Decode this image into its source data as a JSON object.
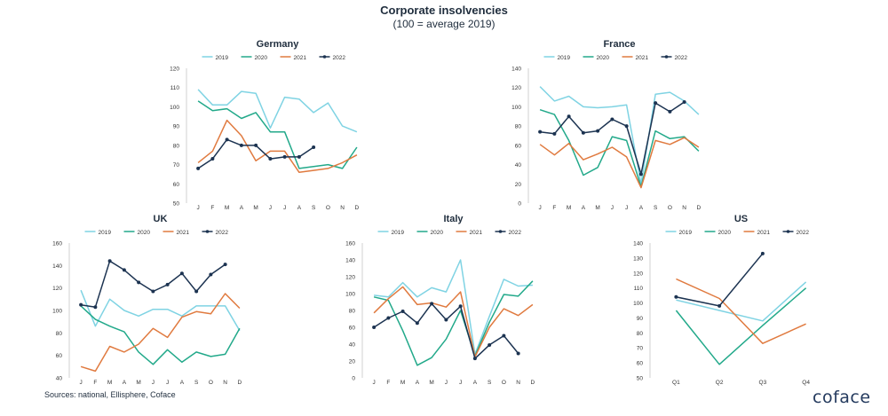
{
  "header": {
    "title": "Corporate insolvencies",
    "subtitle": "(100 = average 2019)"
  },
  "footer": {
    "source": "Sources: national, Ellisphere, Coface",
    "logo": "coface"
  },
  "colors": {
    "2019": "#7fd3e3",
    "2020": "#22a98a",
    "2021": "#e07a3f",
    "2022": "#1c3351",
    "axis_text": "#333333"
  },
  "chart_data": [
    {
      "type": "line",
      "title": "Germany",
      "categories": [
        "J",
        "F",
        "M",
        "A",
        "M",
        "J",
        "J",
        "A",
        "S",
        "O",
        "N",
        "D"
      ],
      "ylim": [
        50,
        120
      ],
      "yticks": [
        50,
        60,
        70,
        80,
        90,
        100,
        110,
        120
      ],
      "legend": "top-center",
      "series": [
        {
          "name": "2019",
          "values": [
            109,
            101,
            101,
            108,
            107,
            89,
            105,
            104,
            97,
            102,
            90,
            87
          ]
        },
        {
          "name": "2020",
          "values": [
            103,
            98,
            99,
            94,
            97,
            87,
            87,
            68,
            69,
            70,
            68,
            79
          ]
        },
        {
          "name": "2021",
          "values": [
            71,
            77,
            93,
            85,
            72,
            77,
            77,
            66,
            67,
            68,
            71,
            75
          ]
        },
        {
          "name": "2022",
          "values": [
            68,
            73,
            83,
            80,
            80,
            73,
            74,
            74,
            79,
            null,
            null,
            null
          ]
        }
      ]
    },
    {
      "type": "line",
      "title": "France",
      "categories": [
        "J",
        "F",
        "M",
        "A",
        "M",
        "J",
        "J",
        "A",
        "S",
        "O",
        "N",
        "D"
      ],
      "ylim": [
        0,
        140
      ],
      "yticks": [
        0,
        20,
        40,
        60,
        80,
        100,
        120,
        140
      ],
      "legend": "top-center",
      "series": [
        {
          "name": "2019",
          "values": [
            121,
            106,
            111,
            100,
            99,
            100,
            102,
            20,
            113,
            115,
            106,
            92
          ]
        },
        {
          "name": "2020",
          "values": [
            97,
            92,
            65,
            29,
            37,
            69,
            65,
            17,
            75,
            67,
            69,
            54
          ]
        },
        {
          "name": "2021",
          "values": [
            61,
            50,
            62,
            45,
            51,
            58,
            48,
            16,
            65,
            61,
            68,
            58
          ]
        },
        {
          "name": "2022",
          "values": [
            74,
            72,
            90,
            73,
            75,
            87,
            80,
            30,
            104,
            95,
            105,
            null
          ]
        }
      ]
    },
    {
      "type": "line",
      "title": "UK",
      "categories": [
        "J",
        "F",
        "M",
        "A",
        "M",
        "J",
        "J",
        "A",
        "S",
        "O",
        "N",
        "D"
      ],
      "ylim": [
        40,
        160
      ],
      "yticks": [
        40,
        60,
        80,
        100,
        120,
        140,
        160
      ],
      "legend": "top-center",
      "series": [
        {
          "name": "2019",
          "values": [
            118,
            86,
            110,
            100,
            95,
            101,
            101,
            95,
            104,
            104,
            104,
            82
          ]
        },
        {
          "name": "2020",
          "values": [
            104,
            92,
            86,
            81,
            63,
            52,
            65,
            54,
            63,
            59,
            61,
            84
          ]
        },
        {
          "name": "2021",
          "values": [
            50,
            46,
            68,
            63,
            70,
            84,
            76,
            94,
            99,
            97,
            115,
            102
          ]
        },
        {
          "name": "2022",
          "values": [
            105,
            103,
            144,
            136,
            125,
            117,
            123,
            133,
            117,
            132,
            141,
            null
          ]
        }
      ]
    },
    {
      "type": "line",
      "title": "Italy",
      "categories": [
        "J",
        "F",
        "M",
        "A",
        "M",
        "J",
        "J",
        "A",
        "S",
        "O",
        "N",
        "D"
      ],
      "ylim": [
        0,
        160
      ],
      "yticks": [
        0,
        20,
        40,
        60,
        80,
        100,
        120,
        140,
        160
      ],
      "legend": "top-center",
      "series": [
        {
          "name": "2019",
          "values": [
            98,
            96,
            113,
            96,
            107,
            102,
            140,
            28,
            73,
            117,
            109,
            110
          ]
        },
        {
          "name": "2020",
          "values": [
            96,
            92,
            56,
            15,
            24,
            46,
            80,
            26,
            66,
            99,
            97,
            115
          ]
        },
        {
          "name": "2021",
          "values": [
            77,
            94,
            108,
            87,
            89,
            84,
            102,
            25,
            60,
            82,
            74,
            87
          ]
        },
        {
          "name": "2022",
          "values": [
            60,
            71,
            79,
            65,
            88,
            69,
            85,
            23,
            39,
            50,
            29,
            null
          ]
        }
      ]
    },
    {
      "type": "line",
      "title": "US",
      "categories": [
        "Q1",
        "Q2",
        "Q3",
        "Q4"
      ],
      "ylim": [
        50,
        140
      ],
      "yticks": [
        50,
        60,
        70,
        80,
        90,
        100,
        110,
        120,
        130,
        140
      ],
      "legend": "top-center",
      "series": [
        {
          "name": "2019",
          "values": [
            102,
            95,
            88,
            114
          ]
        },
        {
          "name": "2020",
          "values": [
            95,
            59,
            85,
            110
          ]
        },
        {
          "name": "2021",
          "values": [
            116,
            103,
            73,
            86
          ]
        },
        {
          "name": "2022",
          "values": [
            104,
            98,
            133,
            null
          ]
        }
      ]
    }
  ]
}
